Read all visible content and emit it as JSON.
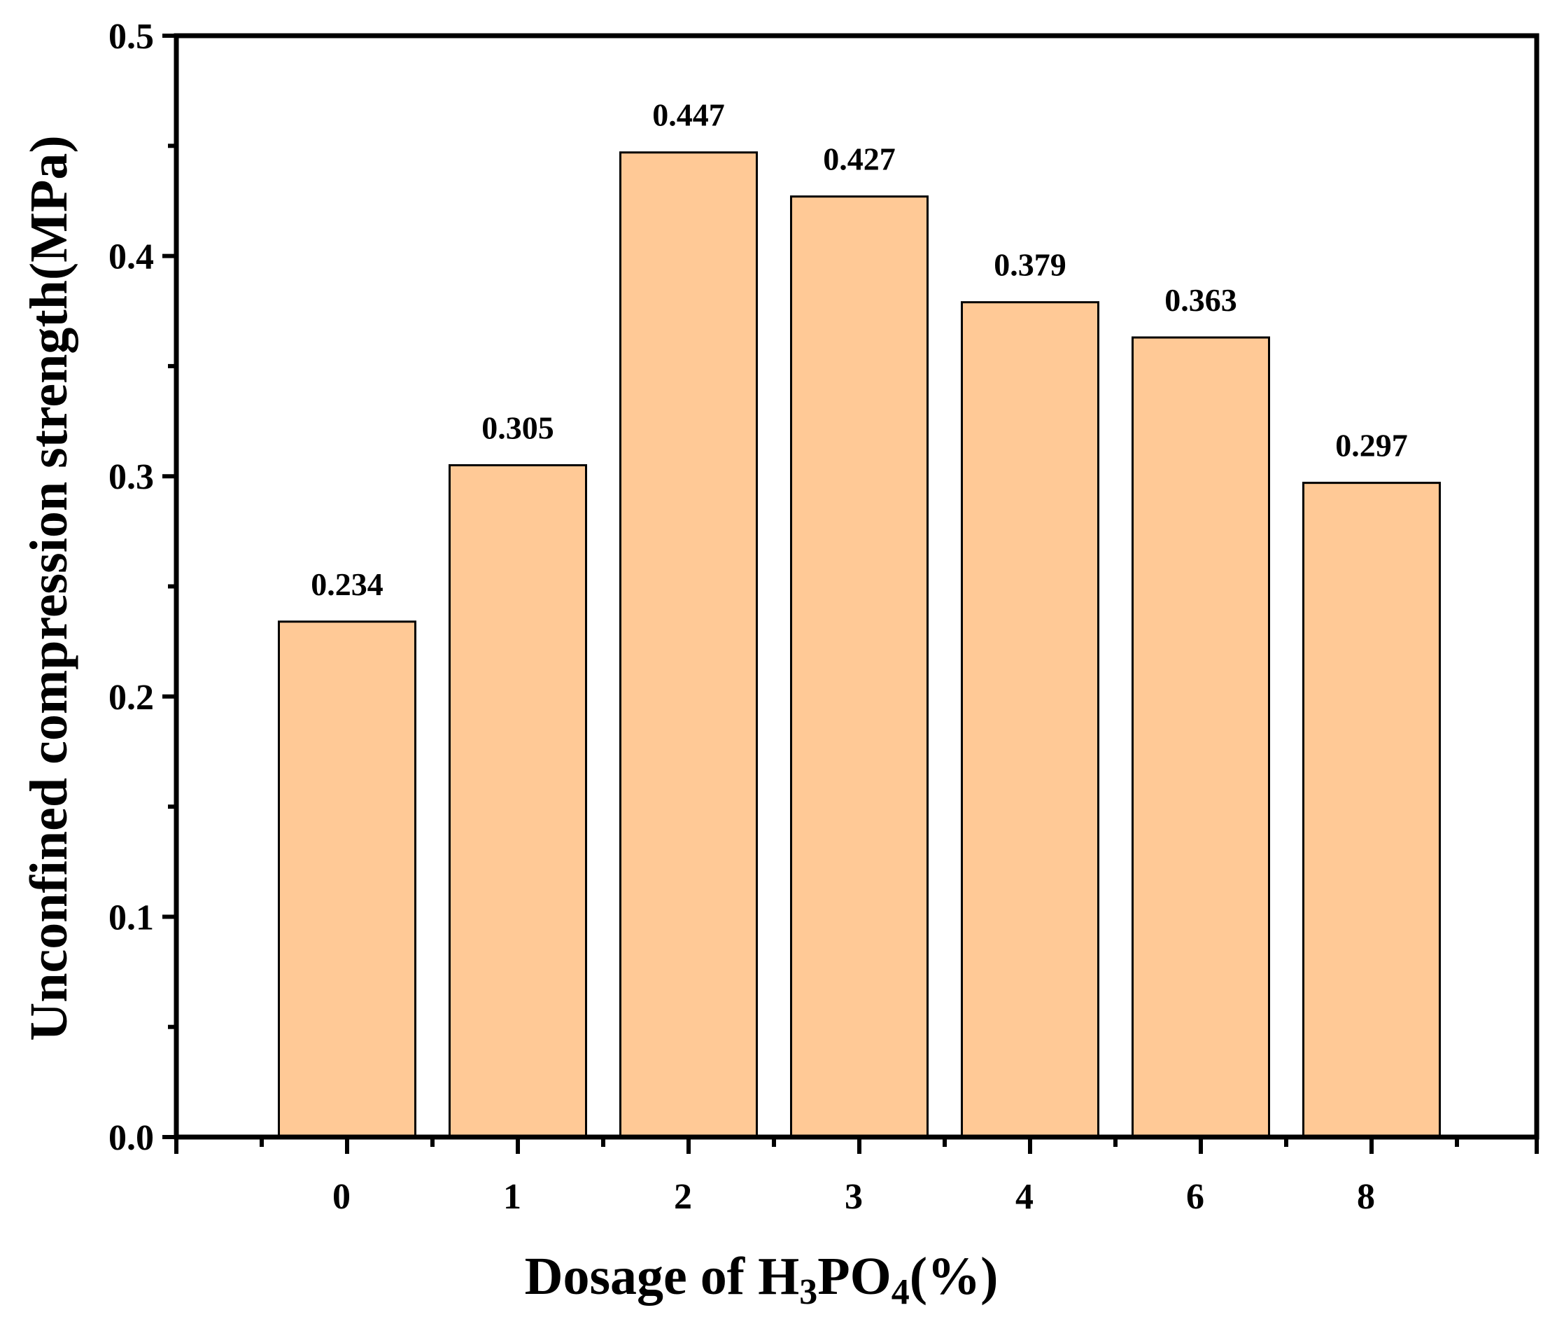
{
  "chart_data": {
    "type": "bar",
    "xlabel": "Dosage of H3PO4(%)",
    "xlabel_parts": {
      "prefix": "Dosage of H",
      "sub1": "3",
      "mid": "PO",
      "sub2": "4",
      "suffix": "(%)"
    },
    "ylabel": "Unconfined compression strength(MPa)",
    "categories": [
      "0",
      "1",
      "2",
      "3",
      "4",
      "6",
      "8"
    ],
    "values": [
      0.234,
      0.305,
      0.447,
      0.427,
      0.379,
      0.363,
      0.297
    ],
    "data_labels": [
      "0.234",
      "0.305",
      "0.447",
      "0.427",
      "0.379",
      "0.363",
      "0.297"
    ],
    "ylim": [
      0,
      0.5
    ],
    "yticks": [
      "0.0",
      "0.1",
      "0.2",
      "0.3",
      "0.4",
      "0.5"
    ],
    "bar_color": "#FFC996",
    "bar_edge_color": "#000000",
    "grid": false,
    "legend": "none"
  }
}
